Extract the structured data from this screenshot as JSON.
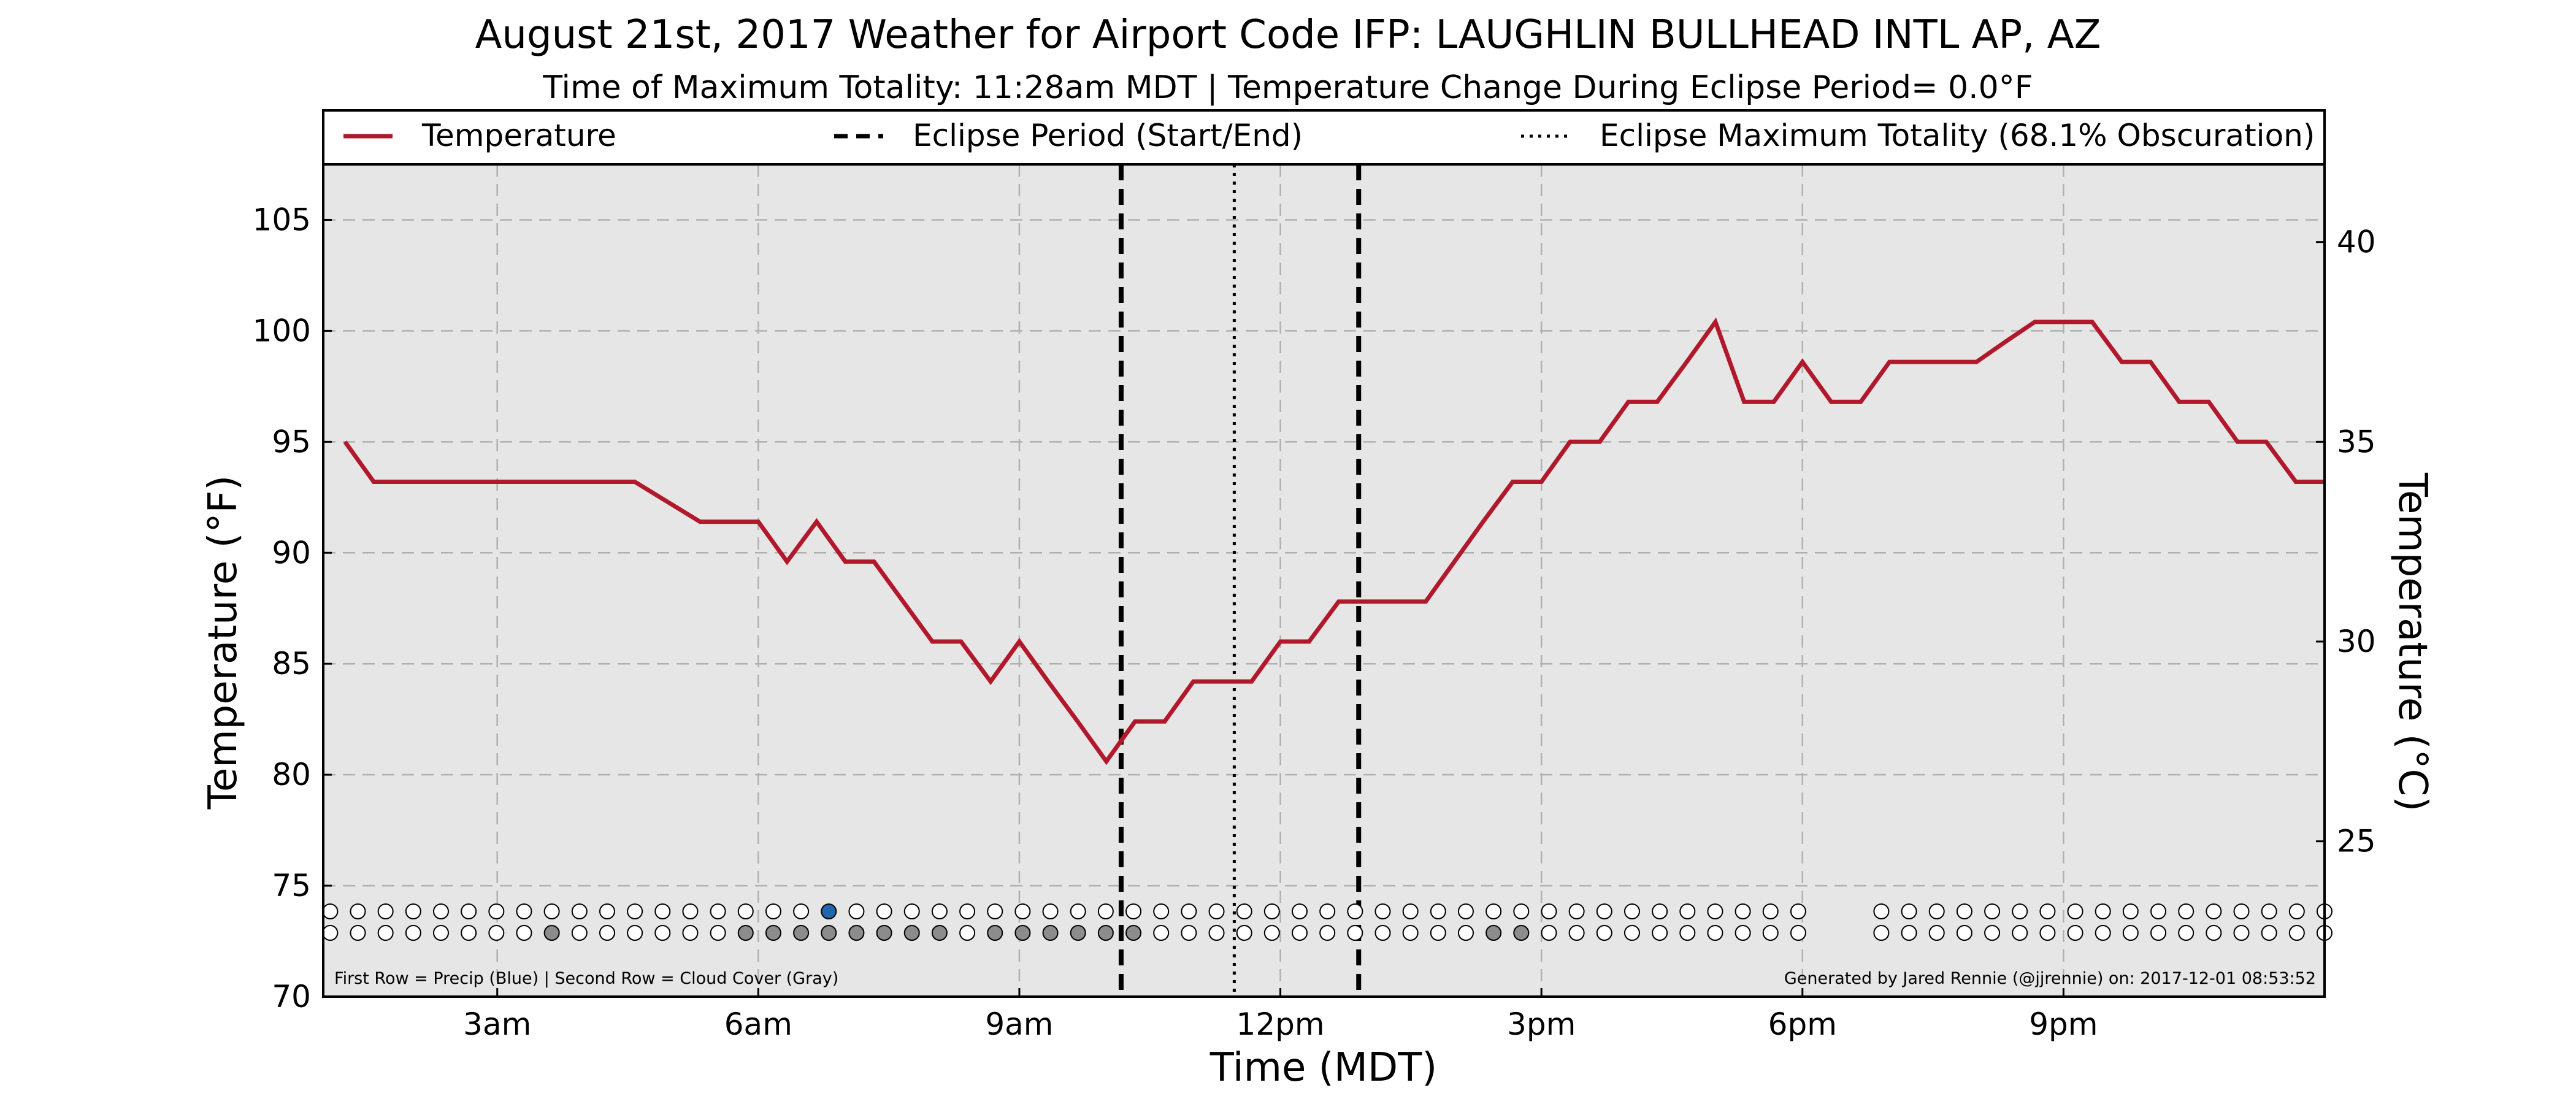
{
  "chart_data": {
    "type": "line",
    "title": "August 21st, 2017 Weather for Airport Code IFP: LAUGHLIN BULLHEAD INTL AP, AZ",
    "subtitle": "Time of Maximum Totality: 11:28am MDT | Temperature Change During Eclipse Period= 0.0°F",
    "xlabel": "Time (MDT)",
    "ylabel": "Temperature (°F)",
    "ylabel_right": "Temperature (°C)",
    "xlim": [
      1.0,
      24.0
    ],
    "ylim": [
      70,
      107.5
    ],
    "ylim_right_c": [
      21.11,
      41.94
    ],
    "x_ticks": [
      {
        "value": 3,
        "label": "3am"
      },
      {
        "value": 6,
        "label": "6am"
      },
      {
        "value": 9,
        "label": "9am"
      },
      {
        "value": 12,
        "label": "12pm"
      },
      {
        "value": 15,
        "label": "3pm"
      },
      {
        "value": 18,
        "label": "6pm"
      },
      {
        "value": 21,
        "label": "9pm"
      }
    ],
    "y_ticks": [
      70,
      75,
      80,
      85,
      90,
      95,
      100,
      105
    ],
    "y_ticks_right": [
      25,
      30,
      35,
      40
    ],
    "grid": true,
    "background": "#e6e6e6",
    "legend_position": "top",
    "legend": [
      {
        "label": "Temperature",
        "style": "solid",
        "color": "#b2182b"
      },
      {
        "label": "Eclipse Period (Start/End)",
        "style": "dashed",
        "color": "#000000"
      },
      {
        "label": "Eclipse Maximum Totality (68.1% Obscuration)",
        "style": "dotted",
        "color": "#000000"
      }
    ],
    "eclipse_start": 10.17,
    "eclipse_max": 11.47,
    "eclipse_end": 12.9,
    "series": [
      {
        "name": "Temperature",
        "color": "#b2182b",
        "x": [
          1.25,
          1.58,
          2.58,
          3.58,
          4.33,
          4.58,
          5.33,
          5.67,
          6.0,
          6.33,
          6.67,
          7.0,
          7.33,
          8.0,
          8.33,
          8.67,
          9.0,
          9.33,
          9.67,
          10.0,
          10.33,
          10.67,
          11.0,
          11.33,
          11.67,
          12.0,
          12.33,
          12.67,
          13.0,
          13.33,
          13.67,
          14.0,
          14.33,
          14.67,
          15.0,
          15.33,
          15.67,
          16.0,
          16.33,
          16.67,
          17.0,
          17.33,
          17.67,
          18.0,
          18.33,
          18.67,
          19.0,
          19.33,
          19.67,
          20.0,
          20.33,
          20.67,
          21.0,
          21.33,
          21.67,
          22.0,
          22.33,
          22.67,
          23.0,
          23.33,
          23.67,
          24.0
        ],
        "y": [
          95.0,
          93.2,
          93.2,
          93.2,
          93.2,
          93.2,
          91.4,
          91.4,
          91.4,
          89.6,
          91.4,
          89.6,
          89.6,
          86.0,
          86.0,
          84.2,
          86.0,
          84.2,
          82.4,
          80.6,
          82.4,
          82.4,
          84.2,
          84.2,
          84.2,
          86.0,
          86.0,
          87.8,
          87.8,
          87.8,
          87.8,
          89.6,
          91.4,
          93.2,
          93.2,
          95.0,
          95.0,
          96.8,
          96.8,
          98.6,
          100.4,
          96.8,
          96.8,
          98.6,
          96.8,
          96.8,
          98.6,
          98.6,
          98.6,
          98.6,
          99.5,
          100.4,
          100.4,
          100.4,
          98.6,
          98.6,
          96.8,
          96.8,
          95.0,
          95.0,
          93.2,
          93.2
        ]
      }
    ],
    "precip_row_note": "First Row = Precip (Blue) | Second Row = Cloud Cover (Gray)",
    "precip_row": [
      0,
      0,
      0,
      0,
      0,
      0,
      0,
      0,
      0,
      0,
      0,
      0,
      0,
      0,
      0,
      0,
      0,
      0,
      1,
      0,
      0,
      0,
      0,
      0,
      0,
      0,
      0,
      0,
      0,
      0,
      0,
      0,
      0,
      0,
      0,
      0,
      0,
      0,
      0,
      0,
      0,
      0,
      0,
      0,
      0,
      0,
      0,
      0,
      0,
      0,
      0,
      0,
      0,
      0,
      0,
      0,
      0,
      0,
      0,
      0,
      0,
      0,
      0,
      0,
      0,
      0,
      0,
      0,
      0,
      0,
      0,
      0,
      0
    ],
    "cloud_row": [
      0,
      0,
      0,
      0,
      0,
      0,
      0,
      0,
      1,
      0,
      0,
      0,
      0,
      0,
      0,
      1,
      1,
      1,
      1,
      1,
      1,
      1,
      1,
      0,
      1,
      1,
      1,
      1,
      1,
      1,
      0,
      0,
      0,
      0,
      0,
      0,
      0,
      0,
      0,
      0,
      0,
      0,
      1,
      1,
      0,
      0,
      0,
      0,
      0,
      0,
      0,
      0,
      0,
      0,
      0,
      0,
      0,
      0,
      0,
      0,
      0,
      0,
      0,
      0,
      0,
      0,
      0,
      0,
      0,
      0,
      0,
      0,
      0
    ],
    "credit": "Generated by Jared Rennie (@jjrennie) on: 2017-12-01 08:53:52",
    "colors": {
      "line": "#b2182b",
      "precip": "#2166ac",
      "cloud": "#8c8c8c",
      "grid": "#b0b0b0"
    }
  }
}
